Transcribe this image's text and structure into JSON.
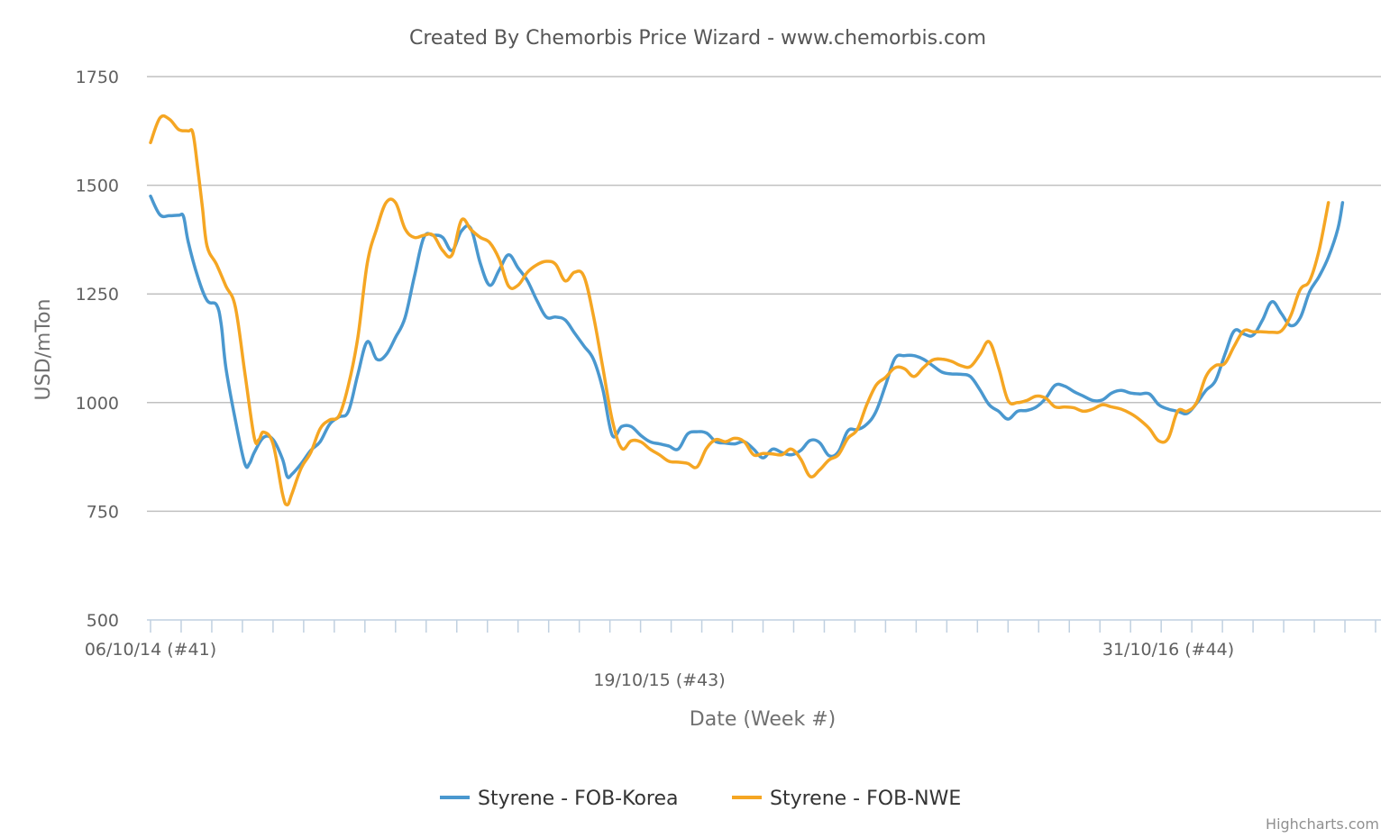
{
  "chart_data": {
    "type": "line",
    "title": "Created By Chemorbis Price Wizard - www.chemorbis.com",
    "xlabel": "Date (Week #)",
    "ylabel": "USD/mTon",
    "ylim": [
      500,
      1750
    ],
    "yticks": [
      500,
      750,
      1000,
      1250,
      1500,
      1750
    ],
    "x_range_weeks": [
      0,
      130
    ],
    "x_tick_labels": [
      {
        "week": 0,
        "label": "06/10/14 (#41)"
      },
      {
        "week": 54,
        "label": "19/10/15 (#43)"
      },
      {
        "week": 108,
        "label": "31/10/16 (#44)"
      }
    ],
    "grid": true,
    "legend_position": "bottom-center",
    "series": [
      {
        "name": "Styrene - FOB-Korea",
        "color": "#4a98cf",
        "points": [
          [
            0,
            1475
          ],
          [
            1,
            1432
          ],
          [
            2,
            1430
          ],
          [
            3,
            1431
          ],
          [
            3.5,
            1428
          ],
          [
            4,
            1370
          ],
          [
            5,
            1290
          ],
          [
            6,
            1235
          ],
          [
            7,
            1225
          ],
          [
            7.5,
            1180
          ],
          [
            8,
            1080
          ],
          [
            9,
            960
          ],
          [
            10,
            860
          ],
          [
            10.5,
            860
          ],
          [
            11,
            885
          ],
          [
            12,
            920
          ],
          [
            13,
            915
          ],
          [
            14,
            870
          ],
          [
            14.5,
            830
          ],
          [
            15,
            835
          ],
          [
            16,
            860
          ],
          [
            17,
            890
          ],
          [
            18,
            910
          ],
          [
            19,
            950
          ],
          [
            20,
            967
          ],
          [
            21,
            980
          ],
          [
            22,
            1065
          ],
          [
            23,
            1140
          ],
          [
            24,
            1100
          ],
          [
            25,
            1110
          ],
          [
            26,
            1150
          ],
          [
            27,
            1195
          ],
          [
            28,
            1290
          ],
          [
            29,
            1380
          ],
          [
            30,
            1385
          ],
          [
            31,
            1380
          ],
          [
            32,
            1350
          ],
          [
            33,
            1395
          ],
          [
            34,
            1400
          ],
          [
            35,
            1320
          ],
          [
            36,
            1270
          ],
          [
            37,
            1305
          ],
          [
            38,
            1340
          ],
          [
            39,
            1310
          ],
          [
            40,
            1280
          ],
          [
            41,
            1235
          ],
          [
            42,
            1197
          ],
          [
            43,
            1197
          ],
          [
            44,
            1190
          ],
          [
            45,
            1160
          ],
          [
            46,
            1130
          ],
          [
            47,
            1100
          ],
          [
            48,
            1030
          ],
          [
            49,
            925
          ],
          [
            50,
            945
          ],
          [
            51,
            945
          ],
          [
            52,
            925
          ],
          [
            53,
            910
          ],
          [
            54,
            905
          ],
          [
            55,
            900
          ],
          [
            56,
            893
          ],
          [
            57,
            928
          ],
          [
            58,
            933
          ],
          [
            59,
            930
          ],
          [
            60,
            910
          ],
          [
            61,
            907
          ],
          [
            62,
            905
          ],
          [
            63,
            910
          ],
          [
            64,
            893
          ],
          [
            65,
            873
          ],
          [
            66,
            893
          ],
          [
            67,
            885
          ],
          [
            68,
            880
          ],
          [
            69,
            890
          ],
          [
            70,
            913
          ],
          [
            71,
            908
          ],
          [
            72,
            878
          ],
          [
            73,
            887
          ],
          [
            74,
            935
          ],
          [
            75,
            938
          ],
          [
            76,
            950
          ],
          [
            77,
            980
          ],
          [
            78,
            1040
          ],
          [
            79,
            1102
          ],
          [
            80,
            1108
          ],
          [
            81,
            1108
          ],
          [
            82,
            1100
          ],
          [
            83,
            1085
          ],
          [
            84,
            1070
          ],
          [
            85,
            1066
          ],
          [
            86,
            1065
          ],
          [
            87,
            1060
          ],
          [
            88,
            1030
          ],
          [
            89,
            995
          ],
          [
            90,
            980
          ],
          [
            91,
            962
          ],
          [
            92,
            980
          ],
          [
            93,
            982
          ],
          [
            94,
            990
          ],
          [
            95,
            1010
          ],
          [
            96,
            1040
          ],
          [
            97,
            1038
          ],
          [
            98,
            1025
          ],
          [
            99,
            1015
          ],
          [
            100,
            1005
          ],
          [
            101,
            1006
          ],
          [
            102,
            1022
          ],
          [
            103,
            1028
          ],
          [
            104,
            1022
          ],
          [
            105,
            1020
          ],
          [
            106,
            1020
          ],
          [
            107,
            995
          ],
          [
            108,
            985
          ],
          [
            109,
            980
          ],
          [
            110,
            975
          ],
          [
            111,
            998
          ],
          [
            112,
            1028
          ],
          [
            113,
            1050
          ],
          [
            114,
            1110
          ],
          [
            115,
            1165
          ],
          [
            116,
            1158
          ],
          [
            117,
            1155
          ],
          [
            118,
            1190
          ],
          [
            119,
            1232
          ],
          [
            120,
            1205
          ],
          [
            121,
            1177
          ],
          [
            122,
            1195
          ],
          [
            123,
            1255
          ],
          [
            124,
            1290
          ],
          [
            125,
            1335
          ],
          [
            126,
            1400
          ],
          [
            126.5,
            1460
          ]
        ]
      },
      {
        "name": "Styrene - FOB-NWE",
        "color": "#f5a623",
        "points": [
          [
            0,
            1598
          ],
          [
            1,
            1655
          ],
          [
            2,
            1652
          ],
          [
            3,
            1628
          ],
          [
            4,
            1625
          ],
          [
            4.5,
            1620
          ],
          [
            5,
            1540
          ],
          [
            5.5,
            1450
          ],
          [
            6,
            1360
          ],
          [
            7,
            1318
          ],
          [
            8,
            1268
          ],
          [
            9,
            1220
          ],
          [
            10,
            1070
          ],
          [
            11,
            920
          ],
          [
            11.5,
            915
          ],
          [
            12,
            932
          ],
          [
            13,
            905
          ],
          [
            14,
            790
          ],
          [
            14.5,
            765
          ],
          [
            15,
            790
          ],
          [
            16,
            850
          ],
          [
            17,
            885
          ],
          [
            18,
            940
          ],
          [
            19,
            960
          ],
          [
            20,
            970
          ],
          [
            21,
            1040
          ],
          [
            22,
            1150
          ],
          [
            23,
            1320
          ],
          [
            24,
            1400
          ],
          [
            25,
            1460
          ],
          [
            26,
            1460
          ],
          [
            27,
            1400
          ],
          [
            28,
            1380
          ],
          [
            29,
            1385
          ],
          [
            30,
            1385
          ],
          [
            31,
            1350
          ],
          [
            32,
            1340
          ],
          [
            33,
            1420
          ],
          [
            34,
            1398
          ],
          [
            35,
            1380
          ],
          [
            36,
            1368
          ],
          [
            37,
            1330
          ],
          [
            38,
            1268
          ],
          [
            39,
            1270
          ],
          [
            40,
            1300
          ],
          [
            41,
            1317
          ],
          [
            42,
            1325
          ],
          [
            43,
            1318
          ],
          [
            44,
            1280
          ],
          [
            45,
            1300
          ],
          [
            46,
            1290
          ],
          [
            47,
            1200
          ],
          [
            48,
            1080
          ],
          [
            49,
            960
          ],
          [
            50,
            895
          ],
          [
            51,
            912
          ],
          [
            52,
            910
          ],
          [
            53,
            893
          ],
          [
            54,
            880
          ],
          [
            55,
            865
          ],
          [
            56,
            863
          ],
          [
            57,
            860
          ],
          [
            58,
            852
          ],
          [
            59,
            895
          ],
          [
            60,
            915
          ],
          [
            61,
            910
          ],
          [
            62,
            918
          ],
          [
            63,
            910
          ],
          [
            64,
            880
          ],
          [
            65,
            883
          ],
          [
            66,
            882
          ],
          [
            67,
            880
          ],
          [
            68,
            893
          ],
          [
            69,
            870
          ],
          [
            70,
            830
          ],
          [
            71,
            845
          ],
          [
            72,
            868
          ],
          [
            73,
            880
          ],
          [
            74,
            918
          ],
          [
            75,
            938
          ],
          [
            76,
            995
          ],
          [
            77,
            1040
          ],
          [
            78,
            1058
          ],
          [
            79,
            1080
          ],
          [
            80,
            1078
          ],
          [
            81,
            1060
          ],
          [
            82,
            1080
          ],
          [
            83,
            1098
          ],
          [
            84,
            1100
          ],
          [
            85,
            1095
          ],
          [
            86,
            1085
          ],
          [
            87,
            1083
          ],
          [
            88,
            1110
          ],
          [
            89,
            1140
          ],
          [
            90,
            1080
          ],
          [
            91,
            1005
          ],
          [
            92,
            1000
          ],
          [
            93,
            1005
          ],
          [
            94,
            1015
          ],
          [
            95,
            1010
          ],
          [
            96,
            990
          ],
          [
            97,
            990
          ],
          [
            98,
            988
          ],
          [
            99,
            980
          ],
          [
            100,
            985
          ],
          [
            101,
            995
          ],
          [
            102,
            990
          ],
          [
            103,
            985
          ],
          [
            104,
            975
          ],
          [
            105,
            960
          ],
          [
            106,
            940
          ],
          [
            107,
            912
          ],
          [
            108,
            918
          ],
          [
            109,
            980
          ],
          [
            110,
            980
          ],
          [
            111,
            1000
          ],
          [
            112,
            1060
          ],
          [
            113,
            1085
          ],
          [
            114,
            1090
          ],
          [
            115,
            1130
          ],
          [
            116,
            1165
          ],
          [
            117,
            1163
          ],
          [
            118,
            1163
          ],
          [
            119,
            1162
          ],
          [
            120,
            1165
          ],
          [
            121,
            1200
          ],
          [
            122,
            1260
          ],
          [
            123,
            1280
          ],
          [
            124,
            1350
          ],
          [
            125,
            1460
          ]
        ]
      }
    ],
    "credit": "Highcharts.com"
  }
}
